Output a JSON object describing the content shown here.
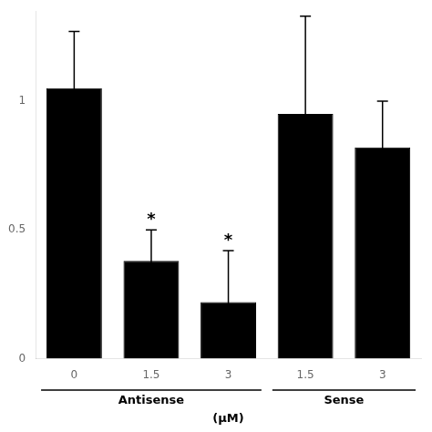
{
  "chart_data": {
    "type": "bar",
    "categories": [
      "0",
      "1.5",
      "3",
      "1.5",
      "3"
    ],
    "values": [
      1.05,
      0.38,
      0.22,
      0.95,
      0.82
    ],
    "errors": [
      0.22,
      0.12,
      0.2,
      0.38,
      0.18
    ],
    "color": "#000000",
    "ylim": [
      0,
      1.35
    ],
    "yticks": [
      0,
      0.5,
      1
    ],
    "grid": false,
    "xlabel": "(μM)",
    "groups": [
      {
        "name": "Antisense",
        "count": 3
      },
      {
        "name": "Sense",
        "count": 2
      }
    ],
    "annotations": [
      {
        "text": "*",
        "index": 1
      },
      {
        "text": "*",
        "index": 2
      }
    ]
  }
}
